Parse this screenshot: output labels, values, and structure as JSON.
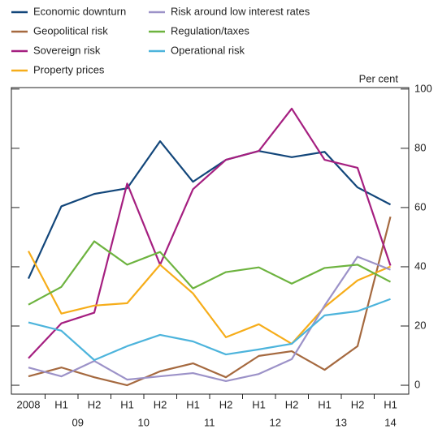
{
  "chart_data": {
    "type": "line",
    "y_unit": "Per cent",
    "categories": [
      "2008",
      "H1",
      "H2",
      "H1",
      "H2",
      "H1",
      "H2",
      "H1",
      "H2",
      "H1",
      "H2",
      "H1"
    ],
    "year_labels": [
      "09",
      "10",
      "11",
      "12",
      "13",
      "14"
    ],
    "ylim": [
      -3,
      100.5
    ],
    "yticks": [
      0,
      20,
      40,
      60,
      80,
      100
    ],
    "series": [
      {
        "name": "Economic downturn",
        "color": "#12467a",
        "values": [
          36,
          60.4,
          64.6,
          66.5,
          82.4,
          68.7,
          76.1,
          79.1,
          77.0,
          78.8,
          66.8,
          61.0
        ]
      },
      {
        "name": "Geopolitical risk",
        "color": "#a5693f",
        "values": [
          3,
          6,
          2.7,
          0,
          4.7,
          7.4,
          2.7,
          9.9,
          11.5,
          5.2,
          13.2,
          56.9
        ]
      },
      {
        "name": "Sovereign risk",
        "color": "#a51f80",
        "values": [
          9.1,
          20.9,
          24.5,
          68.1,
          40.7,
          66.2,
          76.1,
          79.1,
          93.4,
          76.1,
          73.4,
          40.4
        ]
      },
      {
        "name": "Property prices",
        "color": "#f6ad1a",
        "values": [
          45.3,
          24.2,
          26.9,
          27.7,
          40.7,
          31.0,
          16.2,
          20.6,
          14.0,
          26.4,
          35.4,
          40.1
        ]
      },
      {
        "name": "Risk around low interest rates",
        "color": "#9c92c8",
        "values": [
          6,
          3,
          8.2,
          1.9,
          3,
          4.1,
          1.4,
          3.8,
          8.8,
          26.9,
          43.4,
          39.0
        ]
      },
      {
        "name": "Regulation/taxes",
        "color": "#6db33f",
        "values": [
          27.2,
          33.2,
          48.6,
          40.7,
          45,
          32.7,
          38.2,
          39.8,
          34.3,
          39.6,
          40.7,
          34.9
        ]
      },
      {
        "name": "Operational risk",
        "color": "#4db4dc",
        "values": [
          21.2,
          18.4,
          8.5,
          13.2,
          17,
          14.8,
          10.4,
          12.1,
          14,
          23.6,
          25,
          29.1
        ]
      }
    ]
  }
}
